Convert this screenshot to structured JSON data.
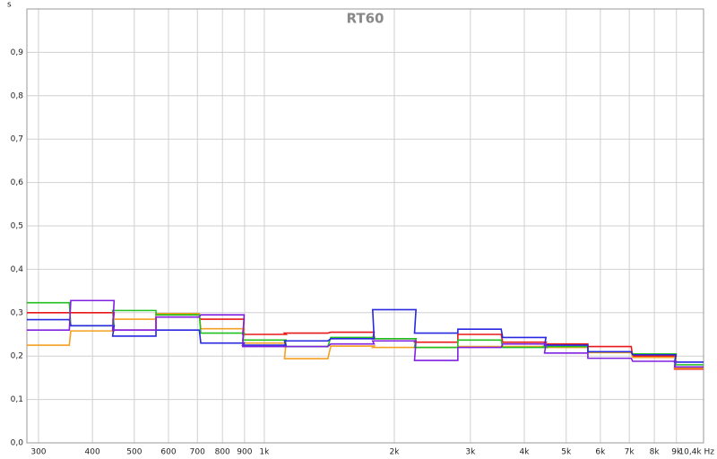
{
  "chart_data": {
    "type": "step",
    "title": "RT60",
    "y_unit": "s",
    "x": [
      315,
      400,
      500,
      630,
      800,
      1000,
      1250,
      1600,
      2000,
      2500,
      3150,
      4000,
      5000,
      6300,
      8000,
      10000
    ],
    "series": [
      {
        "color": "#e81818",
        "values": [
          0.3,
          0.3,
          0.26,
          0.29,
          0.285,
          0.25,
          0.253,
          0.255,
          0.24,
          0.232,
          0.25,
          0.232,
          0.228,
          0.222,
          0.2,
          0.17
        ]
      },
      {
        "color": "#f5a020",
        "values": [
          0.225,
          0.258,
          0.285,
          0.298,
          0.263,
          0.23,
          0.194,
          0.223,
          0.22,
          0.22,
          0.222,
          0.222,
          0.22,
          0.208,
          0.197,
          0.172
        ]
      },
      {
        "color": "#20c020",
        "values": [
          0.323,
          0.27,
          0.305,
          0.295,
          0.253,
          0.237,
          0.222,
          0.243,
          0.24,
          0.22,
          0.237,
          0.22,
          0.222,
          0.21,
          0.205,
          0.18
        ]
      },
      {
        "color": "#2828e0",
        "values": [
          0.284,
          0.27,
          0.246,
          0.26,
          0.23,
          0.225,
          0.235,
          0.24,
          0.307,
          0.253,
          0.262,
          0.243,
          0.225,
          0.21,
          0.203,
          0.186
        ]
      },
      {
        "color": "#8020e0",
        "values": [
          0.26,
          0.328,
          0.26,
          0.29,
          0.295,
          0.222,
          0.222,
          0.228,
          0.235,
          0.19,
          0.22,
          0.228,
          0.207,
          0.195,
          0.188,
          0.175
        ]
      }
    ],
    "xlim": [
      282,
      10400
    ],
    "log_x": true,
    "xticks": [
      300,
      400,
      500,
      600,
      700,
      800,
      900,
      {
        "value": 1000,
        "label": "1k"
      },
      {
        "value": 2000,
        "label": "2k"
      },
      {
        "value": 3000,
        "label": "3k"
      },
      {
        "value": 4000,
        "label": "4k"
      },
      {
        "value": 5000,
        "label": "5k"
      },
      {
        "value": 6000,
        "label": "6k"
      },
      {
        "value": 7000,
        "label": "7k"
      },
      {
        "value": 8000,
        "label": "8k"
      },
      {
        "value": 9000,
        "label": "9k"
      },
      {
        "value": 10400,
        "label": "10,4k Hz"
      }
    ],
    "ylim": [
      0,
      1
    ],
    "yticks": [
      {
        "value": 0,
        "label": "0,0"
      },
      {
        "value": 0.1,
        "label": "0,1"
      },
      {
        "value": 0.2,
        "label": "0,2"
      },
      {
        "value": 0.3,
        "label": "0,3"
      },
      {
        "value": 0.4,
        "label": "0,4"
      },
      {
        "value": 0.5,
        "label": "0,5"
      },
      {
        "value": 0.6,
        "label": "0,6"
      },
      {
        "value": 0.7,
        "label": "0,7"
      },
      {
        "value": 0.8,
        "label": "0,8"
      },
      {
        "value": 0.9,
        "label": "0,9"
      }
    ],
    "grid": true
  }
}
